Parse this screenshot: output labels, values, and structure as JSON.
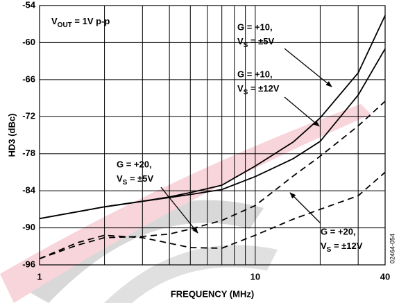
{
  "chart_data": {
    "type": "line",
    "x_label": "FREQUENCY (MHz)",
    "y_label": "HD3 (dBc)",
    "xscale": "log",
    "grid": true,
    "xlim": [
      1,
      40
    ],
    "ylim": [
      -96,
      -54
    ],
    "xticks": [
      1,
      10,
      40
    ],
    "x_minor_ticks": [
      2,
      3,
      4,
      5,
      6,
      7,
      8,
      9,
      20,
      30
    ],
    "yticks": [
      -54,
      -60,
      -66,
      -72,
      -78,
      -84,
      -90,
      -96
    ],
    "x": [
      1,
      1.5,
      2,
      3,
      4,
      5,
      7,
      10,
      15,
      20,
      30,
      40
    ],
    "series": [
      {
        "color": "#000000",
        "dash": "solid",
        "values": [
          -88.5,
          -87.4,
          -86.6,
          -85.7,
          -85,
          -84.3,
          -83.1,
          -80,
          -76.1,
          -72.2,
          -64.9,
          -55.6
        ]
      },
      {
        "color": "#000000",
        "dash": "solid",
        "values": [
          -88.5,
          -87.4,
          -86.6,
          -85.7,
          -85.1,
          -84.6,
          -83.8,
          -81.7,
          -78.8,
          -76,
          -68.5,
          -61
        ]
      },
      {
        "color": "#000000",
        "dash": "dashed",
        "values": [
          -95,
          -92.8,
          -91.6,
          -91.4,
          -91,
          -90.2,
          -88.8,
          -86.4,
          -81.6,
          -78.4,
          -73.5,
          -69.5
        ]
      },
      {
        "color": "#000000",
        "dash": "dashed",
        "values": [
          -95,
          -92.4,
          -91.2,
          -91.6,
          -92.5,
          -93.2,
          -93.3,
          -91.2,
          -88.6,
          -87,
          -84.8,
          -81
        ]
      }
    ],
    "condition": {
      "base": "V",
      "sub": "OUT",
      "tail": " = 1V p-p"
    },
    "annotations": [
      {
        "text": "G = +10,",
        "base": "V",
        "sub": "S",
        "tail": " = ±5V"
      },
      {
        "text": "G = +10,",
        "base": "V",
        "sub": "S",
        "tail": " = ±12V"
      },
      {
        "text": "G = +20,",
        "base": "V",
        "sub": "S",
        "tail": " = ±5V"
      },
      {
        "text": "G = +20,",
        "base": "V",
        "sub": "S",
        "tail": " = ±12V"
      }
    ],
    "figure_id": "02464-054"
  }
}
